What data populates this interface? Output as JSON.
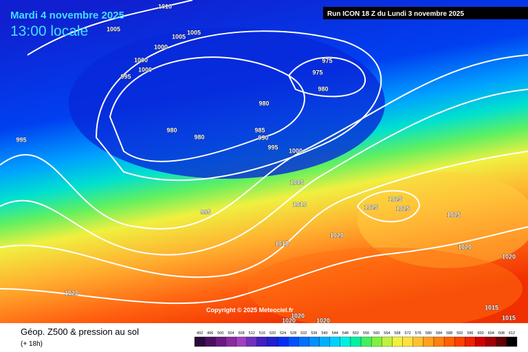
{
  "header": {
    "date": "Mardi 4 novembre 2025",
    "time": "13:00 locale",
    "run": "Run ICON 18 Z du Lundi 3 novembre 2025",
    "copyright": "Copyright © 2025 Meteociel.fr"
  },
  "legend": {
    "title": "Géop. Z500 & pression au sol",
    "lead": "(+ 18h)",
    "ticks": [
      492,
      496,
      500,
      504,
      508,
      512,
      516,
      520,
      524,
      528,
      532,
      536,
      540,
      544,
      548,
      552,
      556,
      560,
      564,
      568,
      572,
      576,
      580,
      584,
      588,
      592,
      596,
      600,
      604,
      608,
      612
    ],
    "colors": [
      "#2a0a3a",
      "#4a1060",
      "#6a1a80",
      "#8a2aa0",
      "#a040c0",
      "#7030c0",
      "#4020c0",
      "#2020d0",
      "#0030f0",
      "#0050ff",
      "#0070ff",
      "#0090ff",
      "#00b0ff",
      "#00d0ff",
      "#00f0e0",
      "#00f0a0",
      "#40f060",
      "#80f040",
      "#c0f040",
      "#f0f040",
      "#ffe040",
      "#ffc030",
      "#ffa020",
      "#ff8010",
      "#ff6000",
      "#ff4000",
      "#f02000",
      "#d00000",
      "#a00000",
      "#600000",
      "#000000"
    ]
  },
  "isobars": [
    1010,
    1005,
    1005,
    1005,
    1000,
    1000,
    1000,
    995,
    975,
    975,
    980,
    980,
    980,
    980,
    985,
    990,
    995,
    1000,
    995,
    1005,
    1010,
    1025,
    1025,
    1025,
    1025,
    995,
    1015,
    1020,
    1020,
    1020,
    1020,
    1015,
    1015,
    1020,
    1020,
    1020
  ]
}
